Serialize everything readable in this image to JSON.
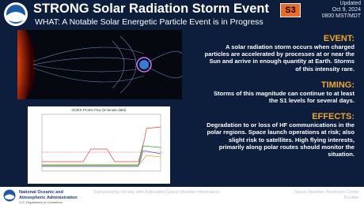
{
  "header": {
    "title": "STRONG Solar Radiation Storm Event",
    "badge": "S3",
    "updated": "Updated",
    "date": "Oct 9, 2024",
    "time": "0800 MST/MDT"
  },
  "subtitle": "WHAT: A Notable Solar Energetic Particle Event is in Progress",
  "chart_caption": "GOES Proton Flux (5-minute data)",
  "sections": [
    {
      "heading": "EVENT:",
      "text": "A solar radiation storm occurs when charged particles are accelerated by processes at or near the Sun and arrive in enough quantity at Earth. Storms of this intensity rare."
    },
    {
      "heading": "TIMING:",
      "text": "Storms of this magnitude can continue to at least the S1 levels for several days."
    },
    {
      "heading": "EFFECTS:",
      "text": "Degradation to or loss of HF communications in the polar regions. Space launch operations at risk; also slight risk to satellites. High flying interests, primarily along polar routes should monitor the situation."
    }
  ],
  "footer": {
    "org": "National Oceanic and Atmospheric Administration",
    "dept": "U.S. Department of Commerce",
    "motto": "Safeguarding Society with Actionable Space Weather Information",
    "center": "Space Weather Prediction Center",
    "city": "Boulder"
  }
}
